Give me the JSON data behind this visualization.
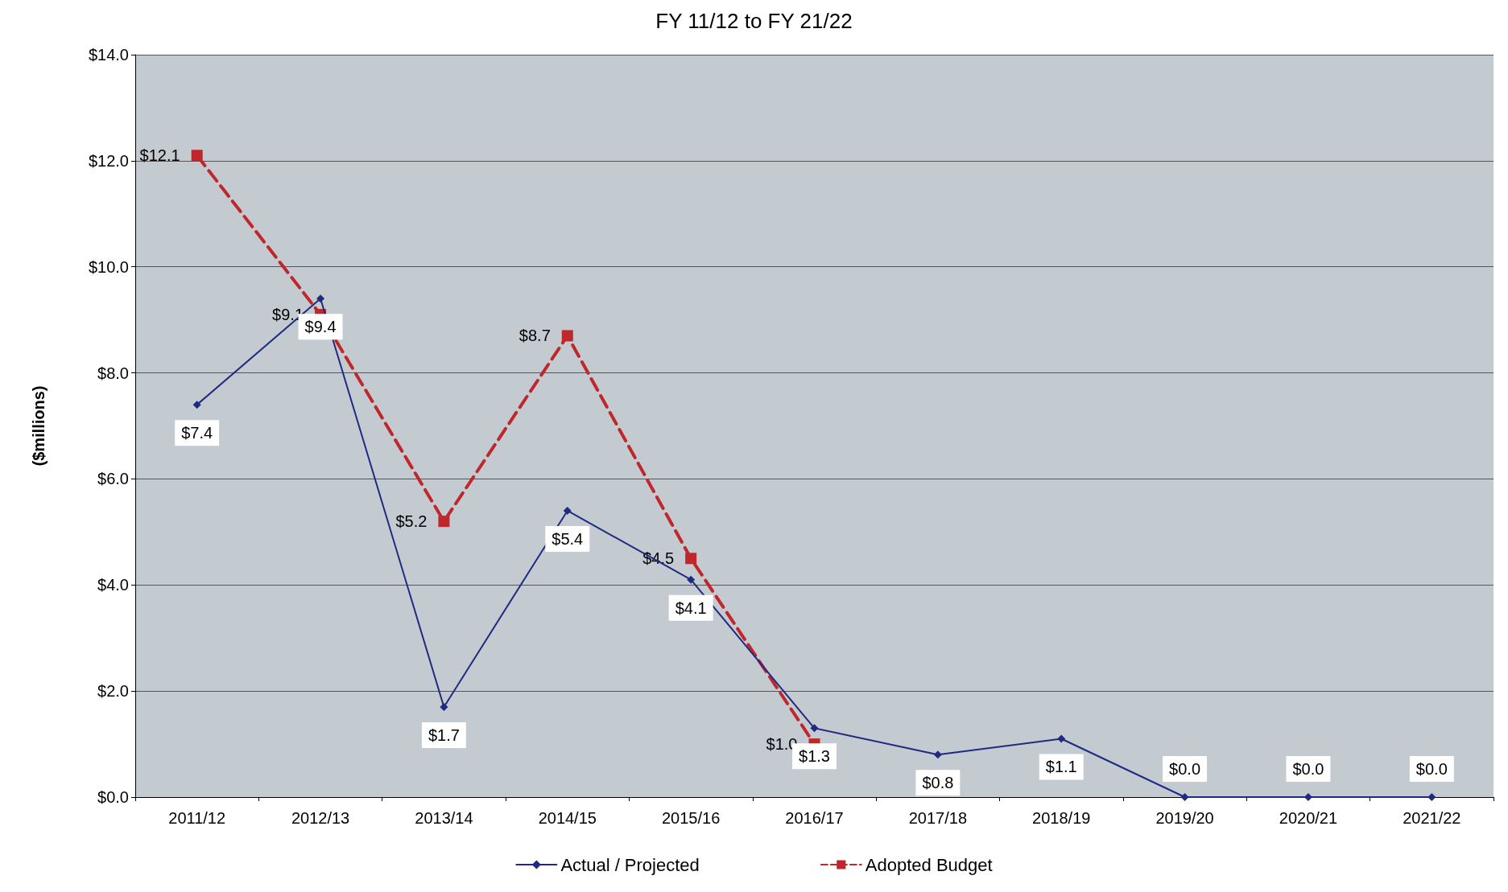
{
  "chart_data": {
    "type": "line",
    "title": "FY 11/12 to FY 21/22",
    "ylabel": "($millions)",
    "categories": [
      "2011/12",
      "2012/13",
      "2013/14",
      "2014/15",
      "2015/16",
      "2016/17",
      "2017/18",
      "2018/19",
      "2019/20",
      "2020/21",
      "2021/22"
    ],
    "series": [
      {
        "name": "Actual / Projected",
        "color": "#1f2a80",
        "marker": "diamond",
        "line_style": "solid",
        "values": [
          7.4,
          9.4,
          1.7,
          5.4,
          4.1,
          1.3,
          0.8,
          1.1,
          0.0,
          0.0,
          0.0
        ],
        "value_labels": [
          "$7.4",
          "$9.4",
          "$1.7",
          "$5.4",
          "$4.1",
          "$1.3",
          "$0.8",
          "$1.1",
          "$0.0",
          "$0.0",
          "$0.0"
        ]
      },
      {
        "name": "Adopted Budget",
        "color": "#c0272d",
        "marker": "square",
        "line_style": "dashed",
        "values": [
          12.1,
          9.1,
          5.2,
          8.7,
          4.5,
          1.0,
          null,
          null,
          null,
          null,
          null
        ],
        "value_labels": [
          "$12.1",
          "$9.1",
          "$5.2",
          "$8.7",
          "$4.5",
          "$1.0",
          null,
          null,
          null,
          null,
          null
        ]
      }
    ],
    "ylim": [
      0,
      14
    ],
    "yticks": [
      {
        "value": 0,
        "label": "$0.0"
      },
      {
        "value": 2,
        "label": "$2.0"
      },
      {
        "value": 4,
        "label": "$4.0"
      },
      {
        "value": 6,
        "label": "$6.0"
      },
      {
        "value": 8,
        "label": "$8.0"
      },
      {
        "value": 10,
        "label": "$10.0"
      },
      {
        "value": 12,
        "label": "$12.0"
      },
      {
        "value": 14,
        "label": "$14.0"
      }
    ],
    "grid": "y",
    "legend": "bottom"
  }
}
